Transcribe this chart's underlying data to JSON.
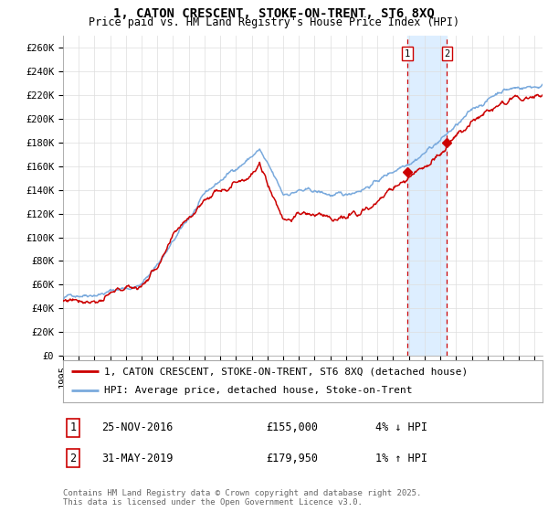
{
  "title": "1, CATON CRESCENT, STOKE-ON-TRENT, ST6 8XQ",
  "subtitle": "Price paid vs. HM Land Registry's House Price Index (HPI)",
  "ylabel_ticks": [
    "£0",
    "£20K",
    "£40K",
    "£60K",
    "£80K",
    "£100K",
    "£120K",
    "£140K",
    "£160K",
    "£180K",
    "£200K",
    "£220K",
    "£240K",
    "£260K"
  ],
  "ytick_vals": [
    0,
    20000,
    40000,
    60000,
    80000,
    100000,
    120000,
    140000,
    160000,
    180000,
    200000,
    220000,
    240000,
    260000
  ],
  "ylim": [
    0,
    270000
  ],
  "xlim_start": 1995.0,
  "xlim_end": 2025.5,
  "red_line_color": "#cc0000",
  "blue_line_color": "#7aaadd",
  "highlight_color": "#ddeeff",
  "dashed_line_color": "#cc0000",
  "marker_color": "#cc0000",
  "sale1_x": 2016.9,
  "sale1_y": 155000,
  "sale2_x": 2019.42,
  "sale2_y": 179950,
  "legend_label_red": "1, CATON CRESCENT, STOKE-ON-TRENT, ST6 8XQ (detached house)",
  "legend_label_blue": "HPI: Average price, detached house, Stoke-on-Trent",
  "table_row1_num": "1",
  "table_row1_date": "25-NOV-2016",
  "table_row1_price": "£155,000",
  "table_row1_hpi": "4% ↓ HPI",
  "table_row2_num": "2",
  "table_row2_date": "31-MAY-2019",
  "table_row2_price": "£179,950",
  "table_row2_hpi": "1% ↑ HPI",
  "footer": "Contains HM Land Registry data © Crown copyright and database right 2025.\nThis data is licensed under the Open Government Licence v3.0.",
  "grid_color": "#dddddd",
  "background_color": "#ffffff",
  "title_fontsize": 10,
  "subtitle_fontsize": 8.5,
  "tick_fontsize": 7.5,
  "legend_fontsize": 8,
  "table_fontsize": 8.5,
  "footer_fontsize": 6.5
}
